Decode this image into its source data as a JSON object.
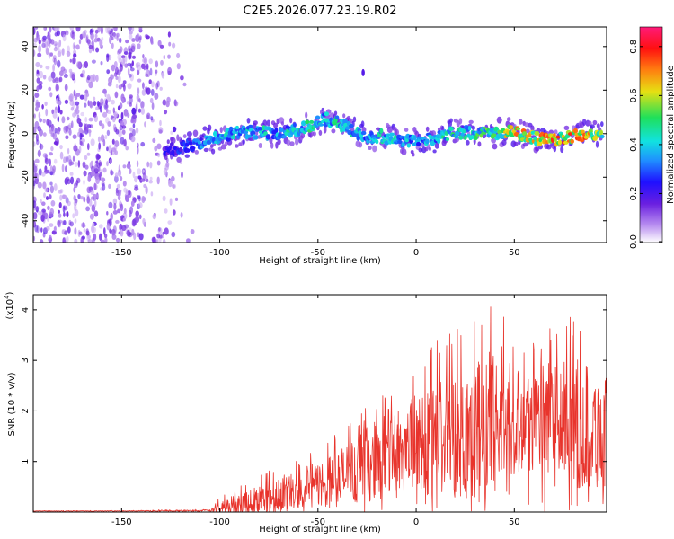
{
  "page": {
    "title": "C2E5.2026.077.23.19.R02"
  },
  "colors": {
    "snr_line": "#e8342c",
    "colormap": [
      "#ffffff",
      "#b98ff0",
      "#6a1fe0",
      "#1f10ff",
      "#1f8fff",
      "#11e2e0",
      "#1fe05a",
      "#e6e012",
      "#ff7f10",
      "#ff1010",
      "#ff1a7a"
    ]
  },
  "chart_data": [
    {
      "type": "heatmap",
      "title": "C2E5.2026.077.23.19.R02",
      "xlabel": "Height of straight line (km)",
      "ylabel": "Frequency (Hz)",
      "xlim": [
        -195,
        97
      ],
      "ylim": [
        -50,
        49
      ],
      "xticks": [
        -150,
        -100,
        -50,
        0,
        50
      ],
      "xtick_labels": [
        "-150",
        "-100",
        "-50",
        "0",
        "50"
      ],
      "yticks": [
        -40,
        -20,
        0,
        20,
        40
      ],
      "ytick_labels": [
        "-40",
        "-20",
        "0",
        "20",
        "40"
      ],
      "colorbar": {
        "label": "Normalized spectral amplitude",
        "range": [
          0,
          0.88
        ],
        "ticks": [
          0.0,
          0.2,
          0.4,
          0.6,
          0.8
        ],
        "tick_labels": [
          "0.0",
          "0.2",
          "0.4",
          "0.6",
          "0.8"
        ]
      },
      "ridge": {
        "x": [
          -128,
          -115,
          -105,
          -95,
          -85,
          -75,
          -65,
          -55,
          -47,
          -40,
          -32,
          -25,
          -18,
          -10,
          0,
          10,
          20,
          30,
          40,
          50,
          60,
          70,
          80,
          90,
          95
        ],
        "freq": [
          -8,
          -5,
          -3,
          0,
          1,
          0,
          1,
          3,
          7,
          5,
          1,
          -2,
          -1,
          -3,
          -4,
          -2,
          1,
          0,
          0,
          1,
          -2,
          -3,
          -1,
          0,
          0
        ],
        "amplitude": [
          0.25,
          0.3,
          0.4,
          0.45,
          0.45,
          0.45,
          0.45,
          0.5,
          0.45,
          0.5,
          0.45,
          0.4,
          0.45,
          0.45,
          0.4,
          0.45,
          0.5,
          0.5,
          0.55,
          0.7,
          0.75,
          0.75,
          0.75,
          0.7,
          0.55
        ]
      },
      "noise_region_x": [
        -195,
        -113
      ],
      "noise_amplitude": [
        0.05,
        0.2
      ]
    },
    {
      "type": "line",
      "xlabel": "Height of straight line (km)",
      "ylabel": "SNR (10 * v/v)",
      "y_multiplier": "(x10^4)",
      "y_multiplier_base": "(x10",
      "y_multiplier_exp": "4",
      "y_multiplier_close": ")",
      "xlim": [
        -195,
        97
      ],
      "ylim": [
        0,
        4.3
      ],
      "xticks": [
        -150,
        -100,
        -50,
        0,
        50
      ],
      "xtick_labels": [
        "-150",
        "-100",
        "-50",
        "0",
        "50"
      ],
      "yticks": [
        1,
        2,
        3,
        4
      ],
      "ytick_labels": [
        "1",
        "2",
        "3",
        "4"
      ],
      "series": [
        {
          "name": "SNR",
          "x": [
            -195,
            -150,
            -105,
            -100,
            -90,
            -80,
            -70,
            -60,
            -50,
            -40,
            -30,
            -20,
            -10,
            0,
            10,
            20,
            30,
            35,
            40,
            50,
            60,
            70,
            80,
            90,
            95
          ],
          "baseline": [
            0.02,
            0.02,
            0.03,
            0.1,
            0.15,
            0.25,
            0.35,
            0.45,
            0.55,
            0.65,
            0.85,
            1.05,
            1.25,
            1.35,
            1.45,
            1.55,
            1.65,
            1.75,
            1.75,
            1.85,
            1.85,
            1.85,
            1.75,
            1.65,
            1.55
          ],
          "envelope": [
            0.03,
            0.03,
            0.06,
            0.3,
            0.55,
            0.75,
            0.95,
            1.1,
            1.3,
            1.6,
            2.0,
            2.4,
            2.8,
            3.0,
            3.4,
            3.7,
            3.9,
            4.2,
            4.0,
            3.7,
            3.6,
            3.7,
            3.9,
            3.8,
            3.4
          ]
        }
      ]
    }
  ]
}
